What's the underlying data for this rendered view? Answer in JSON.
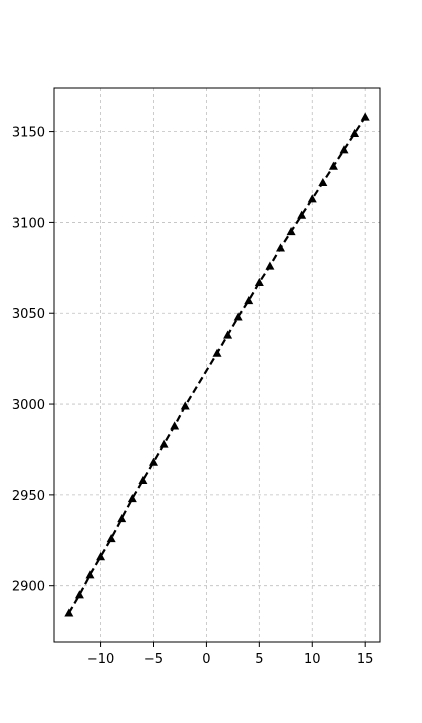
{
  "chart_data": {
    "type": "line",
    "title": "",
    "xlabel": "",
    "ylabel": "",
    "xlim": [
      -14.4,
      16.4
    ],
    "ylim": [
      2869,
      3174
    ],
    "xticks": [
      -10,
      -5,
      0,
      5,
      10,
      15
    ],
    "xtick_labels": [
      "−10",
      "−5",
      "0",
      "5",
      "10",
      "15"
    ],
    "yticks": [
      2900,
      2950,
      3000,
      3050,
      3100,
      3150
    ],
    "ytick_labels": [
      "2900",
      "2950",
      "3000",
      "3050",
      "3100",
      "3150"
    ],
    "grid": true,
    "series": [
      {
        "color": "#000000",
        "marker": "triangle-up",
        "linestyle": "dashed",
        "x": [
          -13,
          -12,
          -11,
          -10,
          -9,
          -8,
          -7,
          -6,
          -5,
          -4,
          -3,
          -2,
          1,
          2,
          3,
          4,
          5,
          6,
          7,
          8,
          9,
          10,
          11,
          12,
          13,
          14,
          15
        ],
        "y": [
          2885,
          2895,
          2906,
          2916,
          2926,
          2937,
          2948,
          2958,
          2968,
          2978,
          2988,
          2999,
          3028,
          3038,
          3048,
          3057,
          3067,
          3076,
          3086,
          3095,
          3104,
          3113,
          3122,
          3131,
          3140,
          3149,
          3158
        ]
      }
    ]
  }
}
